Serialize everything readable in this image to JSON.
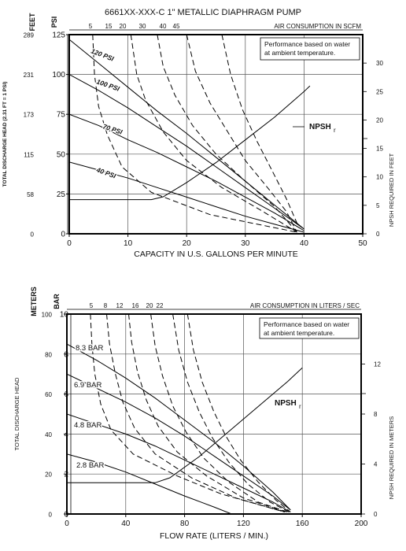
{
  "page": {
    "title": "6661XX-XXX-C   1\" METALLIC DIAPHRAGM PUMP"
  },
  "chart_data": [
    {
      "type": "line",
      "units": "US",
      "x_axis_label": "CAPACITY IN U.S. GALLONS PER MINUTE",
      "x_ticks": [
        "0",
        "10",
        "20",
        "30",
        "40",
        "50"
      ],
      "xlim": [
        0,
        50
      ],
      "y_unit_psi": "PSI",
      "y_unit_feet": "FEET",
      "y_left_label": "TOTAL DISCHARGE HEAD (2.31 FT = 1 PSI)",
      "psi_ticks": [
        "0",
        "25",
        "50",
        "75",
        "100",
        "125"
      ],
      "feet_ticks": [
        "0",
        "58",
        "115",
        "173",
        "231",
        "289"
      ],
      "ylim_psi": [
        0,
        125
      ],
      "air_axis_label": "AIR CONSUMPTION IN SCFM",
      "air_ticks": [
        "5",
        "15",
        "20",
        "30",
        "40",
        "45"
      ],
      "npsh_axis_label": "NPSH REQUIRED IN FEET",
      "npsh_ticks": [
        "0",
        "5",
        "10",
        "15",
        "20",
        "25",
        "30"
      ],
      "npsh_max": 35,
      "note_lines": [
        "Performance based on water",
        "at ambient temperature."
      ],
      "npsh_label": "NPSH",
      "npsh_sub": "r",
      "pressure_curves": [
        {
          "label": "120 PSI",
          "x": [
            0,
            5,
            10,
            15,
            20,
            25,
            30,
            35,
            40
          ],
          "y": [
            122,
            107,
            92,
            77,
            63,
            48,
            33,
            18,
            3
          ]
        },
        {
          "label": "100 PSI",
          "x": [
            0,
            5,
            10,
            15,
            20,
            25,
            30,
            35,
            40
          ],
          "y": [
            100,
            90,
            79,
            67,
            55,
            42,
            29,
            16,
            3
          ]
        },
        {
          "label": "70 PSI",
          "x": [
            0,
            5,
            10,
            15,
            20,
            25,
            30,
            35,
            40
          ],
          "y": [
            75,
            68,
            59,
            51,
            42,
            33,
            23,
            13,
            2
          ]
        },
        {
          "label": "40 PSI",
          "x": [
            0,
            5,
            10,
            15,
            20,
            25,
            30,
            35,
            40
          ],
          "y": [
            45,
            40,
            35,
            29,
            23,
            17,
            11,
            6,
            1
          ]
        }
      ],
      "air_curves": [
        {
          "x": [
            4,
            4.3,
            5,
            6.5,
            9,
            14,
            24,
            38.8
          ],
          "y": [
            125,
            100,
            80,
            62,
            42,
            26,
            12,
            1
          ]
        },
        {
          "x": [
            10.5,
            11.5,
            13,
            16,
            20,
            26,
            33,
            38.8
          ],
          "y": [
            125,
            100,
            84,
            64,
            46,
            29,
            14,
            1
          ]
        },
        {
          "x": [
            15,
            16,
            18,
            21,
            25,
            30,
            35,
            38.8
          ],
          "y": [
            125,
            105,
            87,
            68,
            50,
            33,
            17,
            1
          ]
        },
        {
          "x": [
            20,
            21.5,
            24,
            27,
            30,
            34,
            37,
            38.8
          ],
          "y": [
            125,
            102,
            82,
            64,
            46,
            28,
            14,
            1
          ]
        },
        {
          "x": [
            26,
            27.5,
            29.5,
            32,
            34.5,
            37,
            39
          ],
          "y": [
            125,
            100,
            78,
            58,
            40,
            22,
            5
          ]
        }
      ],
      "npsh_curve": {
        "x": [
          0,
          14,
          16,
          20,
          25,
          30,
          35,
          40,
          41
        ],
        "y": [
          6,
          6,
          6.5,
          9,
          12.5,
          16.5,
          20.5,
          25,
          26
        ]
      }
    },
    {
      "type": "line",
      "units": "metric",
      "x_axis_label": "FLOW RATE (LITERS / MIN.)",
      "x_ticks": [
        "0",
        "40",
        "80",
        "120",
        "160",
        "200"
      ],
      "xlim": [
        0,
        200
      ],
      "y_unit_bar": "BAR",
      "y_unit_meters": "METERS",
      "y_left_label": "TOTAL DISCHARGE HEAD",
      "bar_ticks": [
        "0",
        "2",
        "4",
        "6",
        "8",
        "10"
      ],
      "meters_ticks": [
        "0",
        "20",
        "40",
        "60",
        "80",
        "100"
      ],
      "ylim_bar": [
        0,
        10
      ],
      "air_axis_label": "AIR CONSUMPTION IN LITERS / SEC",
      "air_ticks": [
        "5",
        "8",
        "12",
        "16",
        "20",
        "22"
      ],
      "npsh_axis_label": "NPSH REQUIRED IN METERS",
      "npsh_ticks": [
        "0",
        "4",
        "8",
        "12"
      ],
      "npsh_max": 16,
      "note_lines": [
        "Performance based on water",
        "at ambient temperature."
      ],
      "npsh_label": "NPSH",
      "npsh_sub": "r",
      "pressure_curves": [
        {
          "label": "8.3 BAR",
          "x": [
            0,
            20,
            40,
            60,
            80,
            100,
            120,
            140,
            152
          ],
          "y": [
            8.5,
            7.7,
            6.8,
            5.8,
            4.7,
            3.6,
            2.4,
            1.1,
            0.2
          ]
        },
        {
          "label": "6.9 BAR",
          "x": [
            0,
            20,
            40,
            60,
            80,
            100,
            120,
            140,
            152
          ],
          "y": [
            7.0,
            6.3,
            5.6,
            4.8,
            3.9,
            2.9,
            1.9,
            0.9,
            0.2
          ]
        },
        {
          "label": "4.8 BAR",
          "x": [
            0,
            20,
            40,
            60,
            80,
            100,
            120,
            140,
            152
          ],
          "y": [
            5.0,
            4.5,
            4.0,
            3.4,
            2.7,
            2.0,
            1.3,
            0.6,
            0.1
          ]
        },
        {
          "label": "2.8 BAR",
          "x": [
            0,
            20,
            40,
            60,
            80,
            100,
            112
          ],
          "y": [
            3.0,
            2.6,
            2.1,
            1.5,
            0.9,
            0.35,
            0.0
          ]
        }
      ],
      "air_curves": [
        {
          "x": [
            16,
            17,
            19,
            23,
            30,
            45,
            75,
            105,
            148
          ],
          "y": [
            10,
            8.5,
            7.0,
            5.5,
            4.2,
            3.0,
            1.9,
            1.0,
            0.1
          ]
        },
        {
          "x": [
            27,
            29,
            33,
            38,
            46,
            60,
            85,
            115,
            148
          ],
          "y": [
            10,
            8.5,
            7.0,
            5.6,
            4.3,
            3.0,
            1.8,
            0.8,
            0.1
          ]
        },
        {
          "x": [
            42,
            44,
            48,
            54,
            62,
            75,
            95,
            120,
            149
          ],
          "y": [
            10,
            8.6,
            7.1,
            5.7,
            4.4,
            3.1,
            1.9,
            0.8,
            0.1
          ]
        },
        {
          "x": [
            57,
            60,
            65,
            72,
            81,
            93,
            110,
            130,
            150
          ],
          "y": [
            10,
            8.4,
            6.9,
            5.4,
            4.1,
            2.8,
            1.6,
            0.6,
            0.1
          ]
        },
        {
          "x": [
            72,
            76,
            82,
            90,
            99,
            110,
            123,
            138,
            151
          ],
          "y": [
            10,
            8.2,
            6.6,
            5.1,
            3.8,
            2.6,
            1.5,
            0.6,
            0.1
          ]
        },
        {
          "x": [
            82,
            86,
            92,
            100,
            108,
            118,
            130,
            142,
            152
          ],
          "y": [
            10,
            8.2,
            6.6,
            5.1,
            3.9,
            2.7,
            1.6,
            0.7,
            0.1
          ]
        }
      ],
      "npsh_curve": {
        "x": [
          0,
          60,
          70,
          90,
          110,
          130,
          150,
          160
        ],
        "y": [
          2.5,
          2.5,
          2.9,
          4.6,
          6.6,
          8.6,
          10.6,
          11.7
        ]
      }
    }
  ]
}
